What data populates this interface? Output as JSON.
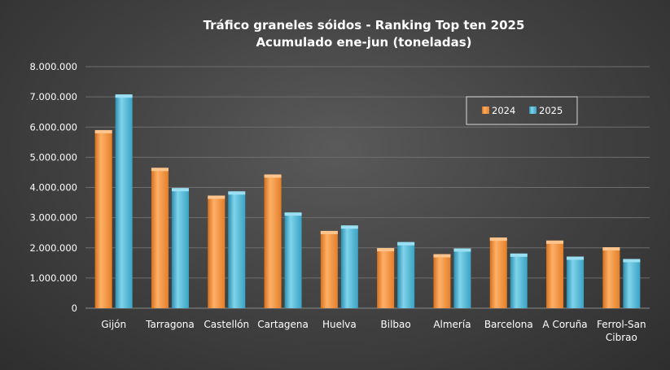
{
  "chart_data": {
    "type": "bar",
    "title": [
      "Tráfico graneles sóidos - Ranking Top ten 2025",
      "Acumulado ene-jun (toneladas)"
    ],
    "categories": [
      [
        "Gijón"
      ],
      [
        "Tarragona"
      ],
      [
        "Castellón"
      ],
      [
        "Cartagena"
      ],
      [
        "Huelva"
      ],
      [
        "Bilbao"
      ],
      [
        "Almería"
      ],
      [
        "Barcelona"
      ],
      [
        "A Coruña"
      ],
      [
        "Ferrol-San",
        "Cibrao"
      ]
    ],
    "series": [
      {
        "name": "2024",
        "color": "#f7963f",
        "values": [
          5900000,
          4650000,
          3730000,
          4430000,
          2560000,
          1990000,
          1790000,
          2340000,
          2240000,
          2020000
        ]
      },
      {
        "name": "2025",
        "color": "#4bb3d1",
        "values": [
          7080000,
          3980000,
          3870000,
          3170000,
          2740000,
          2190000,
          1980000,
          1810000,
          1710000,
          1630000
        ]
      }
    ],
    "ylim": [
      0,
      8000000
    ],
    "yticks": [
      0,
      1000000,
      2000000,
      3000000,
      4000000,
      5000000,
      6000000,
      7000000,
      8000000
    ],
    "ytick_labels": [
      "0",
      "1.000.000",
      "2.000.000",
      "3.000.000",
      "4.000.000",
      "5.000.000",
      "6.000.000",
      "7.000.000",
      "8.000.000"
    ],
    "grid": true,
    "legend_position": "top-right"
  }
}
